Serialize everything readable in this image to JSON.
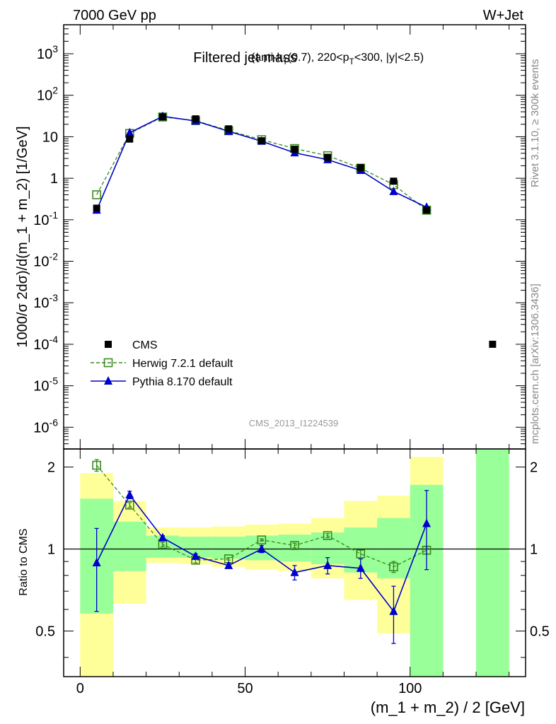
{
  "header": {
    "left": "7000 GeV pp",
    "right": "W+Jet"
  },
  "side_labels": {
    "rivet": "Rivet 3.1.10, ≥ 300k events",
    "mcplots": "mcplots.cern.ch [arXiv:1306.3436]"
  },
  "chart_data": [
    {
      "type": "scatter",
      "title_main": "Filtered jet mass",
      "title_sub": "(anti-k_T(0.7), 220<p_T<300, |y|<2.5)",
      "ylabel": "1000/σ 2dσ)/d(m_1 + m_2) [1/GeV]",
      "yscale": "log",
      "ylim": [
        3e-07,
        5000
      ],
      "xlim": [
        -5,
        135
      ],
      "yticks": [
        {
          "v": 1e-06,
          "base": "10",
          "exp": "-6",
          "plain": ""
        },
        {
          "v": 1e-05,
          "base": "10",
          "exp": "-5",
          "plain": ""
        },
        {
          "v": 0.0001,
          "base": "10",
          "exp": "-4",
          "plain": ""
        },
        {
          "v": 0.001,
          "base": "10",
          "exp": "-3",
          "plain": ""
        },
        {
          "v": 0.01,
          "base": "10",
          "exp": "-2",
          "plain": ""
        },
        {
          "v": 0.1,
          "base": "10",
          "exp": "-1",
          "plain": ""
        },
        {
          "v": 1,
          "base": "",
          "exp": "",
          "plain": "1"
        },
        {
          "v": 10,
          "base": "",
          "exp": "",
          "plain": "10"
        },
        {
          "v": 100,
          "base": "10",
          "exp": "2",
          "plain": ""
        },
        {
          "v": 1000,
          "base": "10",
          "exp": "3",
          "plain": ""
        }
      ],
      "watermark": "CMS_2013_I1224539",
      "series": [
        {
          "name": "CMS",
          "style": "data",
          "color": "#000000",
          "x": [
            5,
            15,
            25,
            35,
            45,
            55,
            65,
            75,
            85,
            95,
            105,
            125
          ],
          "y": [
            0.19,
            8.8,
            30,
            27,
            15.5,
            8,
            5,
            3.2,
            1.8,
            0.85,
            0.17,
            0.0001
          ]
        },
        {
          "name": "Herwig 7.2.1 default",
          "style": "open-square-dashed",
          "color": "#3a8a1e",
          "x": [
            5,
            15,
            25,
            35,
            45,
            55,
            65,
            75,
            85,
            95,
            105
          ],
          "y": [
            0.4,
            12,
            30,
            24.5,
            14,
            8.5,
            5.2,
            3.5,
            1.75,
            0.7,
            0.17
          ]
        },
        {
          "name": "Pythia 8.170 default",
          "style": "filled-triangle-solid",
          "color": "#0000cc",
          "x": [
            5,
            15,
            25,
            35,
            45,
            55,
            65,
            75,
            85,
            95,
            105
          ],
          "y": [
            0.17,
            12.5,
            31,
            24,
            13.5,
            7.8,
            4.1,
            2.8,
            1.55,
            0.48,
            0.2
          ]
        }
      ]
    },
    {
      "type": "scatter",
      "ylabel": "Ratio to CMS",
      "xlabel": "(m_1 + m_2) / 2 [GeV]",
      "ylim": [
        0.34,
        2.33
      ],
      "xlim": [
        -5,
        135
      ],
      "xticks": [
        0,
        50,
        100
      ],
      "yticks": [
        0.5,
        1,
        2
      ],
      "reference_line": 1,
      "uncertainty_bands": [
        {
          "x0": 0,
          "x1": 10,
          "yellow": [
            0.34,
            1.9
          ],
          "green": [
            0.58,
            1.53
          ]
        },
        {
          "x0": 10,
          "x1": 20,
          "yellow": [
            0.63,
            1.5
          ],
          "green": [
            0.83,
            1.26
          ]
        },
        {
          "x0": 20,
          "x1": 30,
          "yellow": [
            0.89,
            1.2
          ],
          "green": [
            0.93,
            1.12
          ]
        },
        {
          "x0": 30,
          "x1": 40,
          "yellow": [
            0.88,
            1.2
          ],
          "green": [
            0.93,
            1.11
          ]
        },
        {
          "x0": 40,
          "x1": 50,
          "yellow": [
            0.86,
            1.21
          ],
          "green": [
            0.92,
            1.11
          ]
        },
        {
          "x0": 50,
          "x1": 60,
          "yellow": [
            0.84,
            1.23
          ],
          "green": [
            0.91,
            1.12
          ]
        },
        {
          "x0": 60,
          "x1": 70,
          "yellow": [
            0.83,
            1.24
          ],
          "green": [
            0.9,
            1.13
          ]
        },
        {
          "x0": 70,
          "x1": 80,
          "yellow": [
            0.78,
            1.3
          ],
          "green": [
            0.88,
            1.15
          ]
        },
        {
          "x0": 80,
          "x1": 90,
          "yellow": [
            0.65,
            1.5
          ],
          "green": [
            0.82,
            1.2
          ]
        },
        {
          "x0": 90,
          "x1": 100,
          "yellow": [
            0.49,
            1.57
          ],
          "green": [
            0.78,
            1.3
          ]
        },
        {
          "x0": 100,
          "x1": 110,
          "yellow": [
            0.34,
            2.18
          ],
          "green": [
            0.34,
            1.72
          ]
        },
        {
          "x0": 120,
          "x1": 130,
          "yellow": [
            0.34,
            2.33
          ],
          "green": [
            0.34,
            2.33
          ]
        }
      ],
      "series": [
        {
          "name": "Herwig 7.2.1 default",
          "style": "open-square-dashed",
          "color": "#3a8a1e",
          "x": [
            5,
            15,
            25,
            35,
            45,
            55,
            65,
            75,
            85,
            95,
            105
          ],
          "y": [
            2.03,
            1.45,
            1.04,
            0.91,
            0.92,
            1.08,
            1.03,
            1.12,
            0.96,
            0.86,
            0.99
          ],
          "err": [
            0.1,
            0.03,
            0.02,
            0.02,
            0.01,
            0.01,
            0.02,
            0.02,
            0.03,
            0.04,
            0.03
          ]
        },
        {
          "name": "Pythia 8.170 default",
          "style": "filled-triangle-solid",
          "color": "#0000cc",
          "x": [
            5,
            15,
            25,
            35,
            45,
            55,
            65,
            75,
            85,
            95,
            105
          ],
          "y": [
            0.89,
            1.58,
            1.1,
            0.94,
            0.87,
            1.0,
            0.82,
            0.87,
            0.85,
            0.59,
            1.24
          ],
          "err": [
            0.3,
            0.05,
            0.02,
            0.02,
            0.02,
            0.03,
            0.05,
            0.06,
            0.07,
            0.14,
            0.4
          ]
        }
      ]
    }
  ]
}
